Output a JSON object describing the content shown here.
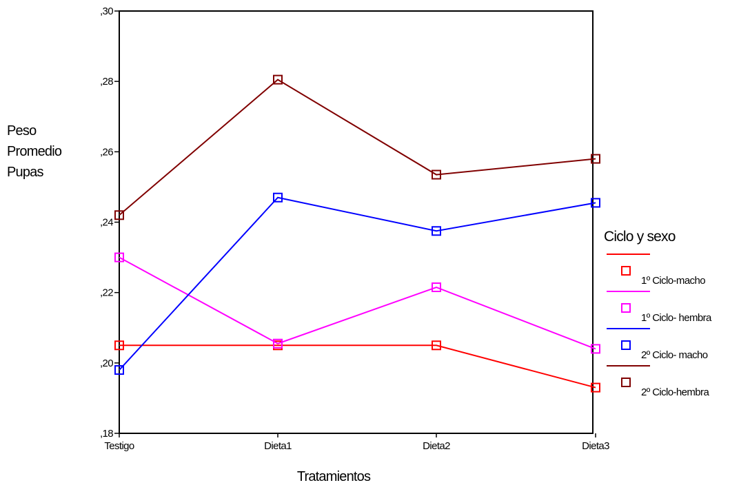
{
  "chart_data": {
    "type": "line",
    "title": "",
    "xlabel": "Tratamientos",
    "ylabel_lines": [
      "Peso",
      "Promedio",
      "Pupas"
    ],
    "categories": [
      "Testigo",
      "Dieta1",
      "Dieta2",
      "Dieta3"
    ],
    "ylim": [
      0.18,
      0.3
    ],
    "yticks": [
      0.18,
      0.2,
      0.22,
      0.24,
      0.26,
      0.28,
      0.3
    ],
    "ytick_labels": [
      ",18",
      ",20",
      ",22",
      ",24",
      ",26",
      ",28",
      ",30"
    ],
    "grid": false,
    "legend": {
      "title": "Ciclo y sexo",
      "position": "right"
    },
    "series": [
      {
        "name": "1º Ciclo-macho",
        "color": "#ff0000",
        "marker": "square-open",
        "values": [
          0.205,
          0.205,
          0.205,
          0.193
        ]
      },
      {
        "name": "1º Ciclo- hembra",
        "color": "#ff00ff",
        "marker": "square-open",
        "values": [
          0.23,
          0.2055,
          0.2215,
          0.204
        ]
      },
      {
        "name": "2º Ciclo- macho",
        "color": "#0000ff",
        "marker": "square-open",
        "values": [
          0.198,
          0.247,
          0.2375,
          0.2455
        ]
      },
      {
        "name": "2º  Ciclo-hembra",
        "color": "#800000",
        "marker": "square-open",
        "values": [
          0.242,
          0.2805,
          0.2535,
          0.258
        ]
      }
    ]
  }
}
